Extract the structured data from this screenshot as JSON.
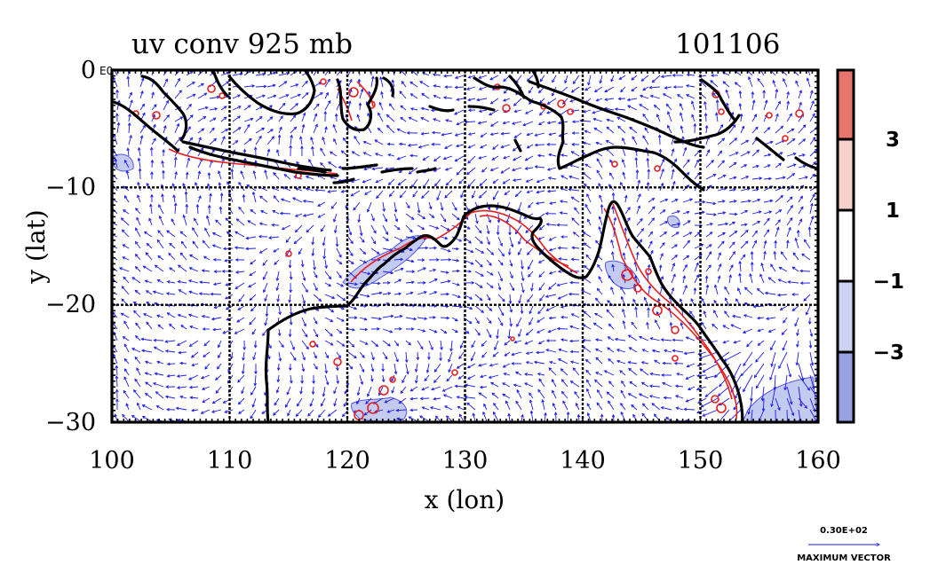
{
  "title": {
    "left": "uv conv 925 mb",
    "right": "101106"
  },
  "axes": {
    "xlabel": "x (lon)",
    "ylabel": "y (lat)",
    "xlim": [
      100,
      160
    ],
    "ylim": [
      -30,
      0
    ],
    "xticks": [
      "100",
      "110",
      "120",
      "130",
      "140",
      "150",
      "160"
    ],
    "yticks": [
      "0",
      "−10",
      "−20",
      "−30"
    ],
    "y0_suffix": "E0"
  },
  "colorbar": {
    "labels": [
      "3",
      "1",
      "−1",
      "−3"
    ],
    "colors": [
      "#e8756d",
      "#f6d2cf",
      "#ffffff",
      "#ffffff",
      "#cdd2f0",
      "#98a2e0"
    ]
  },
  "legend": {
    "magnitude": "0.30E+02",
    "caption": "MAXIMUM VECTOR"
  },
  "colors": {
    "vector": "#1a1aee",
    "contour_pos": "#e61e1e",
    "fill_neg": "#b9c2ef",
    "coast": "#000000"
  }
}
